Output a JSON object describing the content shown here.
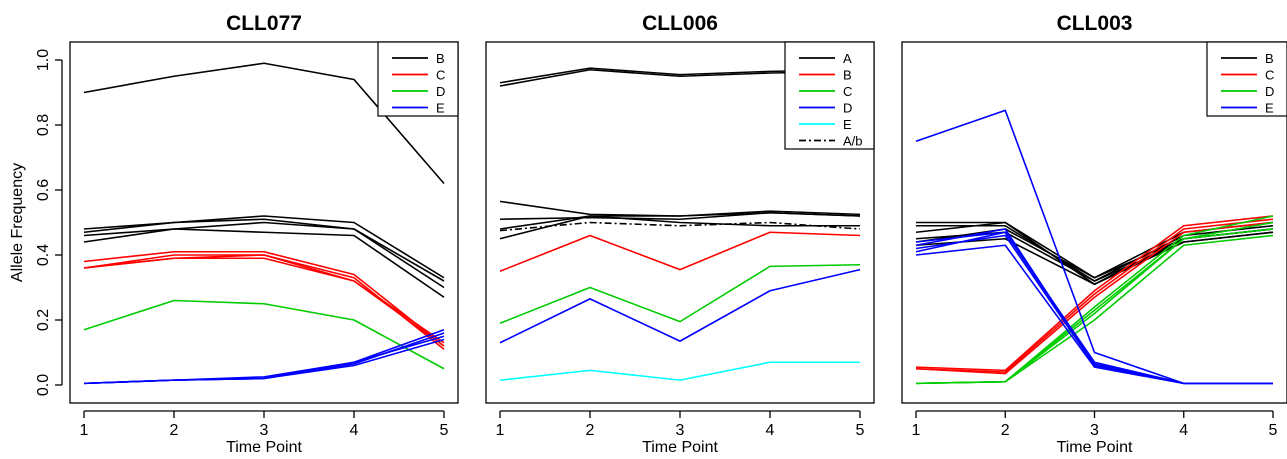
{
  "chart_data": [
    {
      "type": "line",
      "title": "CLL077",
      "xlabel": "Time Point",
      "ylabel": "Allele Frequency",
      "x": [
        1,
        2,
        3,
        4,
        5
      ],
      "xlim": [
        1,
        5
      ],
      "ylim": [
        0,
        1
      ],
      "yticks": [
        "0.0",
        "0.2",
        "0.4",
        "0.6",
        "0.8",
        "1.0"
      ],
      "show_yaxis": true,
      "legend_position": "top-right",
      "legend": [
        {
          "label": "B",
          "color": "#000000",
          "dash": ""
        },
        {
          "label": "C",
          "color": "#ff0000",
          "dash": ""
        },
        {
          "label": "D",
          "color": "#00cc00",
          "dash": ""
        },
        {
          "label": "E",
          "color": "#0000ff",
          "dash": ""
        }
      ],
      "series": [
        {
          "color": "#000000",
          "values": [
            0.9,
            0.95,
            0.99,
            0.94,
            0.62
          ]
        },
        {
          "color": "#000000",
          "values": [
            0.48,
            0.5,
            0.52,
            0.5,
            0.33
          ]
        },
        {
          "color": "#000000",
          "values": [
            0.47,
            0.5,
            0.51,
            0.48,
            0.32
          ]
        },
        {
          "color": "#000000",
          "values": [
            0.46,
            0.48,
            0.5,
            0.48,
            0.3
          ]
        },
        {
          "color": "#000000",
          "values": [
            0.44,
            0.48,
            0.47,
            0.46,
            0.27
          ]
        },
        {
          "color": "#ff0000",
          "values": [
            0.38,
            0.41,
            0.41,
            0.34,
            0.12
          ]
        },
        {
          "color": "#ff0000",
          "values": [
            0.36,
            0.4,
            0.4,
            0.33,
            0.11
          ]
        },
        {
          "color": "#ff0000",
          "values": [
            0.36,
            0.39,
            0.39,
            0.32,
            0.13
          ]
        },
        {
          "color": "#ff0000",
          "values": [
            0.36,
            0.39,
            0.4,
            0.32,
            0.12
          ]
        },
        {
          "color": "#00cc00",
          "values": [
            0.17,
            0.26,
            0.25,
            0.2,
            0.05
          ]
        },
        {
          "color": "#0000ff",
          "values": [
            0.005,
            0.015,
            0.025,
            0.07,
            0.17
          ]
        },
        {
          "color": "#0000ff",
          "values": [
            0.005,
            0.015,
            0.02,
            0.07,
            0.15
          ]
        },
        {
          "color": "#0000ff",
          "values": [
            0.005,
            0.015,
            0.02,
            0.065,
            0.16
          ]
        },
        {
          "color": "#0000ff",
          "values": [
            0.005,
            0.015,
            0.02,
            0.06,
            0.14
          ]
        }
      ]
    },
    {
      "type": "line",
      "title": "CLL006",
      "xlabel": "Time Point",
      "ylabel": "",
      "x": [
        1,
        2,
        3,
        4,
        5
      ],
      "xlim": [
        1,
        5
      ],
      "ylim": [
        0,
        1
      ],
      "yticks": [],
      "show_yaxis": false,
      "legend_position": "top-right",
      "legend": [
        {
          "label": "A",
          "color": "#000000",
          "dash": ""
        },
        {
          "label": "B",
          "color": "#ff0000",
          "dash": ""
        },
        {
          "label": "C",
          "color": "#00cc00",
          "dash": ""
        },
        {
          "label": "D",
          "color": "#0000ff",
          "dash": ""
        },
        {
          "label": "E",
          "color": "#00ffff",
          "dash": ""
        },
        {
          "label": "A/b",
          "color": "#000000",
          "dash": "7,3,2,3"
        }
      ],
      "series": [
        {
          "color": "#000000",
          "values": [
            0.93,
            0.975,
            0.955,
            0.965,
            0.97
          ]
        },
        {
          "color": "#000000",
          "values": [
            0.92,
            0.97,
            0.95,
            0.96,
            0.965
          ]
        },
        {
          "color": "#000000",
          "values": [
            0.565,
            0.525,
            0.52,
            0.535,
            0.525
          ]
        },
        {
          "color": "#000000",
          "values": [
            0.51,
            0.515,
            0.51,
            0.53,
            0.52
          ]
        },
        {
          "color": "#000000",
          "values": [
            0.48,
            0.52,
            0.52,
            0.53,
            0.52
          ]
        },
        {
          "color": "#000000",
          "values": [
            0.45,
            0.52,
            0.5,
            0.49,
            0.49
          ]
        },
        {
          "color": "#000000",
          "values": [
            0.475,
            0.5,
            0.49,
            0.5,
            0.48
          ],
          "dash": "7,3,2,3"
        },
        {
          "color": "#ff0000",
          "values": [
            0.35,
            0.46,
            0.355,
            0.47,
            0.46
          ]
        },
        {
          "color": "#00cc00",
          "values": [
            0.19,
            0.3,
            0.195,
            0.365,
            0.37
          ]
        },
        {
          "color": "#0000ff",
          "values": [
            0.13,
            0.265,
            0.135,
            0.29,
            0.355
          ]
        },
        {
          "color": "#00ffff",
          "values": [
            0.015,
            0.045,
            0.015,
            0.07,
            0.07
          ]
        }
      ]
    },
    {
      "type": "line",
      "title": "CLL003",
      "xlabel": "Time Point",
      "ylabel": "",
      "x": [
        1,
        2,
        3,
        4,
        5
      ],
      "xlim": [
        1,
        5
      ],
      "ylim": [
        0,
        1
      ],
      "yticks": [],
      "show_yaxis": false,
      "legend_position": "top-right",
      "legend": [
        {
          "label": "B",
          "color": "#000000",
          "dash": ""
        },
        {
          "label": "C",
          "color": "#ff0000",
          "dash": ""
        },
        {
          "label": "D",
          "color": "#00cc00",
          "dash": ""
        },
        {
          "label": "E",
          "color": "#0000ff",
          "dash": ""
        }
      ],
      "series": [
        {
          "color": "#000000",
          "values": [
            0.5,
            0.5,
            0.33,
            0.47,
            0.5
          ]
        },
        {
          "color": "#000000",
          "values": [
            0.49,
            0.49,
            0.32,
            0.46,
            0.49
          ]
        },
        {
          "color": "#000000",
          "values": [
            0.47,
            0.5,
            0.31,
            0.45,
            0.48
          ]
        },
        {
          "color": "#000000",
          "values": [
            0.45,
            0.47,
            0.32,
            0.44,
            0.47
          ]
        },
        {
          "color": "#000000",
          "values": [
            0.44,
            0.48,
            0.33,
            0.45,
            0.48
          ]
        },
        {
          "color": "#000000",
          "values": [
            0.43,
            0.45,
            0.31,
            0.44,
            0.47
          ]
        },
        {
          "color": "#ff0000",
          "values": [
            0.055,
            0.045,
            0.29,
            0.49,
            0.52
          ]
        },
        {
          "color": "#ff0000",
          "values": [
            0.05,
            0.035,
            0.27,
            0.47,
            0.5
          ]
        },
        {
          "color": "#ff0000",
          "values": [
            0.05,
            0.04,
            0.28,
            0.48,
            0.51
          ]
        },
        {
          "color": "#00cc00",
          "values": [
            0.005,
            0.01,
            0.24,
            0.46,
            0.52
          ]
        },
        {
          "color": "#00cc00",
          "values": [
            0.005,
            0.01,
            0.22,
            0.45,
            0.48
          ]
        },
        {
          "color": "#00cc00",
          "values": [
            0.005,
            0.01,
            0.2,
            0.43,
            0.46
          ]
        },
        {
          "color": "#00cc00",
          "values": [
            0.005,
            0.01,
            0.23,
            0.45,
            0.5
          ]
        },
        {
          "color": "#0000ff",
          "values": [
            0.75,
            0.845,
            0.1,
            0.005,
            0.005
          ]
        },
        {
          "color": "#0000ff",
          "values": [
            0.44,
            0.47,
            0.07,
            0.005,
            0.005
          ]
        },
        {
          "color": "#0000ff",
          "values": [
            0.43,
            0.48,
            0.06,
            0.005,
            0.005
          ]
        },
        {
          "color": "#0000ff",
          "values": [
            0.42,
            0.46,
            0.06,
            0.005,
            0.005
          ]
        },
        {
          "color": "#0000ff",
          "values": [
            0.4,
            0.43,
            0.055,
            0.005,
            0.005
          ]
        },
        {
          "color": "#0000ff",
          "values": [
            0.41,
            0.47,
            0.065,
            0.005,
            0.005
          ]
        }
      ]
    }
  ]
}
